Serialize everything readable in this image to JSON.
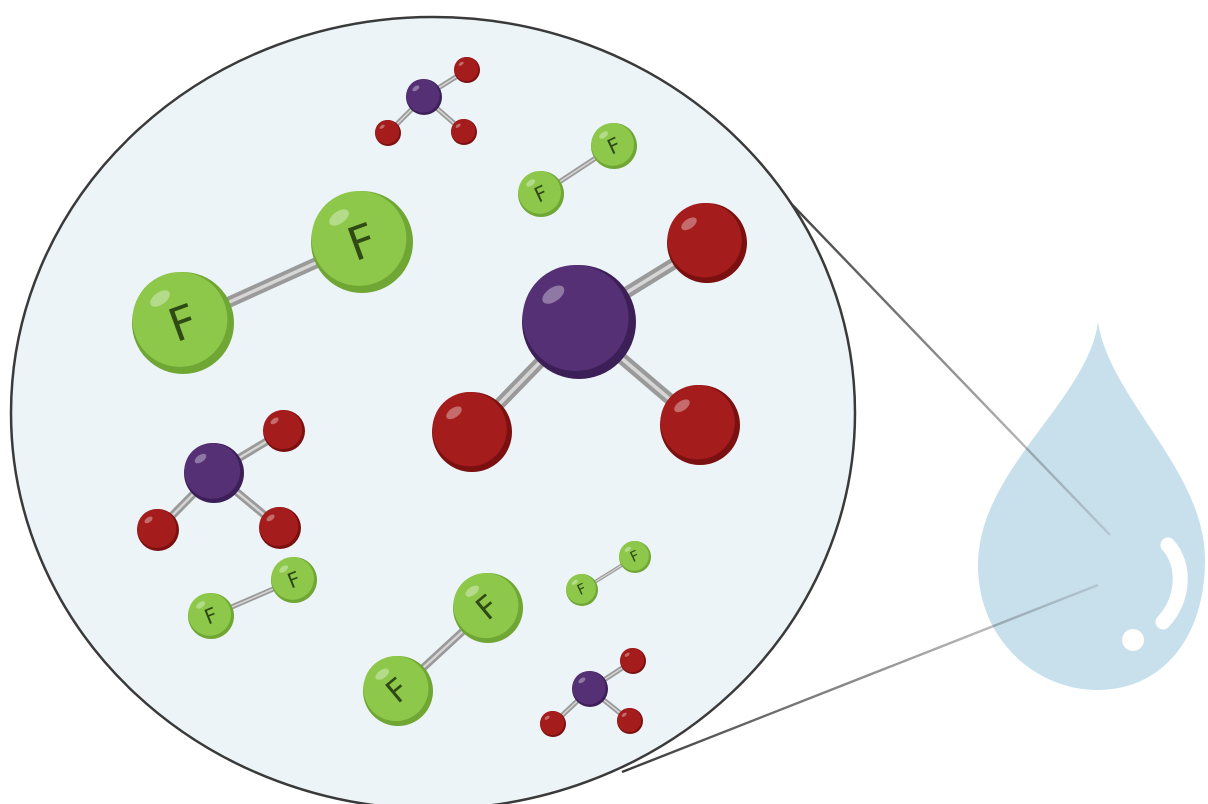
{
  "colors": {
    "background": "#ffffff",
    "magnifier_fill": "#edf4f8",
    "magnifier_stroke": "#3a3a3a",
    "droplet": "#c8e0ec",
    "droplet_highlight": "#ffffff",
    "fluorine": "#8dc84a",
    "fluorine_shade": "#6fa634",
    "central_atom": "#553075",
    "central_atom_shade": "#3d1f58",
    "oxygen": "#a51c1c",
    "oxygen_shade": "#7a1010",
    "bond": "#9a9a9a"
  },
  "labels": {
    "fluorine_symbol": "F"
  },
  "molecules": {
    "f2_count": 5,
    "trigonal_count": 4
  }
}
